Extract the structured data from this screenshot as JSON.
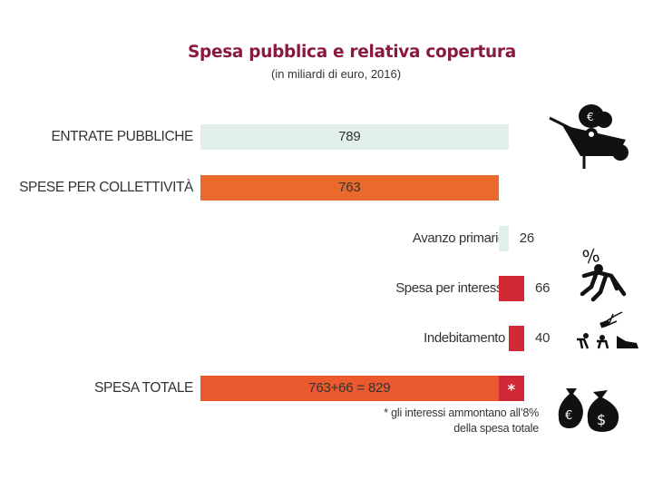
{
  "title": "Spesa pubblica e relativa copertura",
  "subtitle": "(in miliardi di euro, 2016)",
  "total_bar_label": "763+66 = 829",
  "total_bar_marker": "*",
  "footnote": {
    "line1": "* gli interessi ammontano all’8%",
    "line2": "della spesa totale"
  },
  "colors": {
    "title": "#8a1a3c",
    "entrate": "#e2f0eb",
    "spese": "#ea6a2c",
    "avanzo": "#e2f0eb",
    "interessi": "#d12a36",
    "indebitamento": "#d12a36",
    "totale": "#ea5a2e",
    "totale_interessi": "#d12a36"
  },
  "icons": [
    "wheelbarrow-money-icon",
    "percent-falling-man-icon",
    "debt-figures-icon",
    "money-bags-icon"
  ],
  "chart_data": {
    "type": "bar",
    "orientation": "horizontal",
    "title": "Spesa pubblica e relativa copertura",
    "subtitle": "(in miliardi di euro, 2016)",
    "categories": [
      "ENTRATE PUBBLICHE",
      "SPESE PER COLLETTIVITÀ",
      "Avanzo primario",
      "Spesa per interessi",
      "Indebitamento",
      "SPESA TOTALE"
    ],
    "values": [
      789,
      763,
      26,
      66,
      40,
      829
    ],
    "value_labels": [
      "789",
      "763",
      "26",
      "66",
      "40",
      "763+66 = 829"
    ],
    "bars": [
      {
        "category": "ENTRATE PUBBLICHE",
        "start": 0,
        "value": 789,
        "label": "789",
        "color": "#e2f0eb"
      },
      {
        "category": "SPESE PER COLLETTIVITÀ",
        "start": 0,
        "value": 763,
        "label": "763",
        "color": "#ea6a2c"
      },
      {
        "category": "Avanzo primario",
        "start": 763,
        "value": 26,
        "label": "26",
        "color": "#e2f0eb"
      },
      {
        "category": "Spesa per interessi",
        "start": 763,
        "value": 66,
        "label": "66",
        "color": "#d12a36"
      },
      {
        "category": "Indebitamento",
        "start": 789,
        "value": 40,
        "label": "40",
        "color": "#d12a36"
      },
      {
        "category": "SPESA TOTALE",
        "start": 0,
        "value": 829,
        "label": "763+66 = 829",
        "color": "#ea5a2e",
        "segments": [
          {
            "value": 763,
            "color": "#ea5a2e"
          },
          {
            "value": 66,
            "color": "#d12a36"
          }
        ]
      }
    ],
    "xlim": [
      0,
      829
    ],
    "grid": false,
    "legend": "none"
  }
}
